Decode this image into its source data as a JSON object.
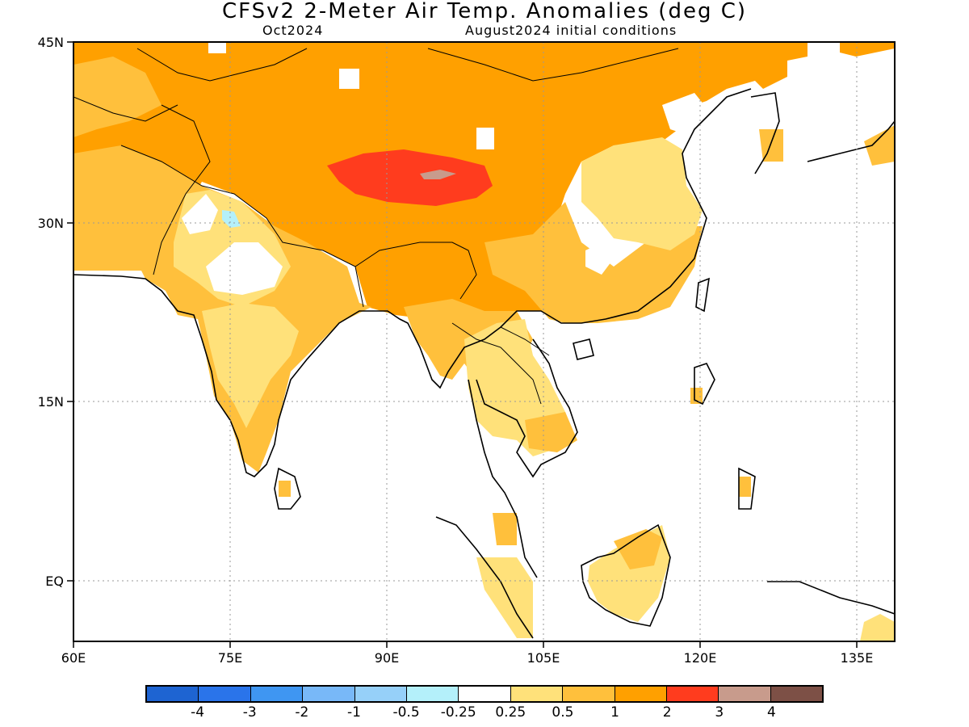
{
  "title": "CFSv2 2-Meter Air Temp. Anomalies (deg C)",
  "valid_month": "Oct2024",
  "initial_conditions": "August2024 initial conditions",
  "axes": {
    "lon_ticks": [
      "60E",
      "75E",
      "90E",
      "105E",
      "120E",
      "135E"
    ],
    "lat_ticks": [
      "45N",
      "30N",
      "15N",
      "EQ"
    ]
  },
  "colorbar": {
    "colors": [
      "#1e64d2",
      "#2a74ea",
      "#3f96f2",
      "#78b8f8",
      "#96d0f9",
      "#b4f0fa",
      "#ffffff",
      "#ffe17a",
      "#ffc03c",
      "#ffa000",
      "#ff3c1e",
      "#c89b8c",
      "#7d5046"
    ],
    "labels": [
      "-4",
      "-3",
      "-2",
      "-1",
      "-0.5",
      "-0.25",
      "0.25",
      "0.5",
      "1",
      "2",
      "3",
      "4"
    ]
  },
  "colors": {
    "anom_1_2": "#ffa000",
    "anom_05_1": "#ffc03c",
    "anom_025_05": "#ffe17a",
    "anom_2_3": "#ff3c1e",
    "anom_3_4": "#c89b8c",
    "neg_025_05": "#b4f0fa"
  }
}
